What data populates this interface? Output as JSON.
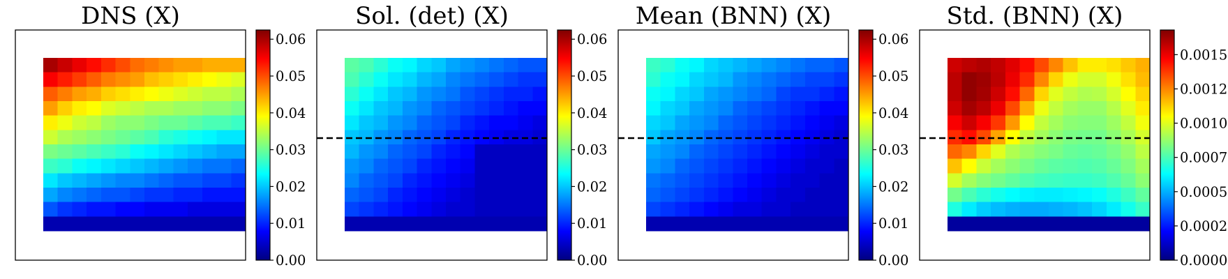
{
  "chart_data": [
    {
      "type": "heatmap",
      "title": "DNS (X)",
      "colormap": "jet",
      "clim": [
        0,
        0.0625
      ],
      "colorbar_ticks": [
        "0.00",
        "0.01",
        "0.02",
        "0.03",
        "0.04",
        "0.05",
        "0.06"
      ],
      "colorbar_tick_values": [
        0,
        0.01,
        0.02,
        0.03,
        0.04,
        0.05,
        0.06
      ],
      "reference_line": null,
      "rows": [
        [
          0.06,
          0.058,
          0.056,
          0.054,
          0.052,
          0.05,
          0.048,
          0.047,
          0.046,
          0.045,
          0.045,
          0.044,
          0.044,
          0.044
        ],
        [
          0.055,
          0.053,
          0.051,
          0.049,
          0.047,
          0.046,
          0.045,
          0.043,
          0.042,
          0.041,
          0.04,
          0.039,
          0.038,
          0.037
        ],
        [
          0.049,
          0.047,
          0.045,
          0.044,
          0.042,
          0.041,
          0.04,
          0.039,
          0.038,
          0.037,
          0.036,
          0.035,
          0.035,
          0.034
        ],
        [
          0.045,
          0.042,
          0.04,
          0.039,
          0.037,
          0.036,
          0.035,
          0.034,
          0.034,
          0.033,
          0.033,
          0.032,
          0.032,
          0.031
        ],
        [
          0.04,
          0.038,
          0.036,
          0.035,
          0.033,
          0.032,
          0.032,
          0.031,
          0.03,
          0.03,
          0.029,
          0.028,
          0.028,
          0.027
        ],
        [
          0.036,
          0.034,
          0.033,
          0.032,
          0.031,
          0.03,
          0.029,
          0.028,
          0.026,
          0.025,
          0.024,
          0.023,
          0.022,
          0.022
        ],
        [
          0.031,
          0.03,
          0.029,
          0.028,
          0.027,
          0.026,
          0.024,
          0.023,
          0.022,
          0.021,
          0.02,
          0.019,
          0.018,
          0.018
        ],
        [
          0.027,
          0.026,
          0.024,
          0.023,
          0.022,
          0.021,
          0.02,
          0.019,
          0.018,
          0.017,
          0.016,
          0.015,
          0.015,
          0.014
        ],
        [
          0.022,
          0.02,
          0.019,
          0.018,
          0.017,
          0.016,
          0.016,
          0.015,
          0.014,
          0.013,
          0.013,
          0.012,
          0.012,
          0.011
        ],
        [
          0.018,
          0.016,
          0.015,
          0.014,
          0.013,
          0.013,
          0.012,
          0.011,
          0.011,
          0.01,
          0.01,
          0.009,
          0.009,
          0.009
        ],
        [
          0.013,
          0.011,
          0.01,
          0.009,
          0.009,
          0.008,
          0.008,
          0.007,
          0.007,
          0.007,
          0.006,
          0.006,
          0.006,
          0.006
        ],
        [
          0.003,
          0.003,
          0.003,
          0.003,
          0.003,
          0.003,
          0.003,
          0.003,
          0.003,
          0.003,
          0.003,
          0.003,
          0.003,
          0.003
        ]
      ]
    },
    {
      "type": "heatmap",
      "title": "Sol. (det) (X)",
      "colormap": "jet",
      "clim": [
        0,
        0.0625
      ],
      "colorbar_ticks": [
        "0.00",
        "0.01",
        "0.02",
        "0.03",
        "0.04",
        "0.05",
        "0.06"
      ],
      "colorbar_tick_values": [
        0,
        0.01,
        0.02,
        0.03,
        0.04,
        0.05,
        0.06
      ],
      "reference_line": "dashed horizontal",
      "rows": [
        [
          0.029,
          0.028,
          0.026,
          0.024,
          0.023,
          0.021,
          0.02,
          0.018,
          0.017,
          0.016,
          0.015,
          0.014,
          0.013,
          0.013
        ],
        [
          0.028,
          0.026,
          0.024,
          0.022,
          0.021,
          0.019,
          0.018,
          0.016,
          0.015,
          0.014,
          0.013,
          0.012,
          0.011,
          0.011
        ],
        [
          0.026,
          0.024,
          0.022,
          0.02,
          0.019,
          0.017,
          0.016,
          0.015,
          0.013,
          0.012,
          0.011,
          0.01,
          0.01,
          0.009
        ],
        [
          0.024,
          0.022,
          0.02,
          0.019,
          0.017,
          0.016,
          0.014,
          0.013,
          0.012,
          0.011,
          0.01,
          0.009,
          0.008,
          0.008
        ],
        [
          0.022,
          0.02,
          0.019,
          0.017,
          0.016,
          0.014,
          0.013,
          0.012,
          0.01,
          0.009,
          0.008,
          0.008,
          0.007,
          0.006
        ],
        [
          0.02,
          0.019,
          0.017,
          0.016,
          0.014,
          0.013,
          0.012,
          0.01,
          0.009,
          0.008,
          0.007,
          0.006,
          0.006,
          0.005
        ],
        [
          0.019,
          0.017,
          0.016,
          0.014,
          0.013,
          0.012,
          0.01,
          0.009,
          0.008,
          0.004,
          0.004,
          0.004,
          0.004,
          0.004
        ],
        [
          0.017,
          0.016,
          0.014,
          0.013,
          0.012,
          0.01,
          0.009,
          0.008,
          0.007,
          0.004,
          0.004,
          0.004,
          0.004,
          0.004
        ],
        [
          0.016,
          0.014,
          0.013,
          0.012,
          0.01,
          0.009,
          0.008,
          0.007,
          0.006,
          0.004,
          0.004,
          0.004,
          0.004,
          0.004
        ],
        [
          0.014,
          0.013,
          0.012,
          0.01,
          0.009,
          0.008,
          0.007,
          0.006,
          0.005,
          0.004,
          0.004,
          0.004,
          0.004,
          0.004
        ],
        [
          0.012,
          0.011,
          0.01,
          0.009,
          0.008,
          0.007,
          0.006,
          0.005,
          0.005,
          0.004,
          0.004,
          0.004,
          0.004,
          0.004
        ],
        [
          0.003,
          0.003,
          0.003,
          0.003,
          0.003,
          0.003,
          0.003,
          0.003,
          0.003,
          0.003,
          0.003,
          0.003,
          0.003,
          0.003
        ]
      ]
    },
    {
      "type": "heatmap",
      "title": "Mean (BNN) (X)",
      "colormap": "jet",
      "clim": [
        0,
        0.0625
      ],
      "colorbar_ticks": [
        "0.00",
        "0.01",
        "0.02",
        "0.03",
        "0.04",
        "0.05",
        "0.06"
      ],
      "colorbar_tick_values": [
        0,
        0.01,
        0.02,
        0.03,
        0.04,
        0.05,
        0.06
      ],
      "reference_line": "dashed horizontal",
      "rows": [
        [
          0.027,
          0.026,
          0.024,
          0.023,
          0.021,
          0.02,
          0.019,
          0.018,
          0.017,
          0.016,
          0.015,
          0.014,
          0.014,
          0.013
        ],
        [
          0.026,
          0.024,
          0.023,
          0.021,
          0.02,
          0.019,
          0.017,
          0.016,
          0.015,
          0.014,
          0.013,
          0.012,
          0.012,
          0.011
        ],
        [
          0.024,
          0.023,
          0.021,
          0.02,
          0.018,
          0.017,
          0.016,
          0.015,
          0.014,
          0.012,
          0.011,
          0.011,
          0.01,
          0.009
        ],
        [
          0.023,
          0.021,
          0.02,
          0.018,
          0.017,
          0.016,
          0.014,
          0.013,
          0.012,
          0.011,
          0.01,
          0.009,
          0.008,
          0.008
        ],
        [
          0.021,
          0.02,
          0.018,
          0.017,
          0.016,
          0.014,
          0.013,
          0.012,
          0.011,
          0.01,
          0.009,
          0.008,
          0.007,
          0.006
        ],
        [
          0.02,
          0.018,
          0.017,
          0.016,
          0.014,
          0.013,
          0.012,
          0.011,
          0.01,
          0.009,
          0.008,
          0.007,
          0.006,
          0.005
        ],
        [
          0.018,
          0.017,
          0.016,
          0.014,
          0.013,
          0.012,
          0.011,
          0.01,
          0.009,
          0.008,
          0.007,
          0.006,
          0.005,
          0.005
        ],
        [
          0.017,
          0.016,
          0.014,
          0.013,
          0.012,
          0.011,
          0.01,
          0.009,
          0.008,
          0.007,
          0.006,
          0.005,
          0.005,
          0.004
        ],
        [
          0.015,
          0.014,
          0.013,
          0.012,
          0.011,
          0.01,
          0.009,
          0.008,
          0.007,
          0.006,
          0.005,
          0.005,
          0.004,
          0.004
        ],
        [
          0.014,
          0.013,
          0.012,
          0.011,
          0.01,
          0.009,
          0.008,
          0.007,
          0.006,
          0.005,
          0.005,
          0.004,
          0.004,
          0.004
        ],
        [
          0.012,
          0.011,
          0.01,
          0.009,
          0.008,
          0.007,
          0.006,
          0.006,
          0.005,
          0.005,
          0.004,
          0.004,
          0.004,
          0.004
        ],
        [
          0.003,
          0.003,
          0.003,
          0.003,
          0.003,
          0.003,
          0.003,
          0.003,
          0.003,
          0.003,
          0.003,
          0.003,
          0.003,
          0.003
        ]
      ]
    },
    {
      "type": "heatmap",
      "title": "Std. (BNN) (X)",
      "colormap": "jet",
      "clim": [
        0,
        0.00168
      ],
      "colorbar_ticks": [
        "0.00000",
        "0.00025",
        "0.00050",
        "0.00075",
        "0.00100",
        "0.00125",
        "0.00150"
      ],
      "colorbar_tick_values": [
        0,
        0.00025,
        0.0005,
        0.00075,
        0.001,
        0.00125,
        0.0015
      ],
      "reference_line": "dashed horizontal",
      "rows": [
        [
          0.00155,
          0.00158,
          0.0016,
          0.00157,
          0.00152,
          0.00145,
          0.00135,
          0.00125,
          0.00115,
          0.00108,
          0.00108,
          0.0011,
          0.00114,
          0.00118
        ],
        [
          0.00158,
          0.00165,
          0.00163,
          0.00158,
          0.0015,
          0.0014,
          0.00125,
          0.00112,
          0.00102,
          0.00098,
          0.00098,
          0.00103,
          0.0011,
          0.00116
        ],
        [
          0.00158,
          0.00165,
          0.00162,
          0.00155,
          0.00145,
          0.0013,
          0.00112,
          0.001,
          0.00095,
          0.00092,
          0.00093,
          0.00098,
          0.00105,
          0.00112
        ],
        [
          0.00155,
          0.00162,
          0.00158,
          0.0015,
          0.00135,
          0.00118,
          0.00102,
          0.00095,
          0.0009,
          0.00088,
          0.00088,
          0.00093,
          0.001,
          0.00108
        ],
        [
          0.00148,
          0.00155,
          0.00148,
          0.00138,
          0.00122,
          0.00105,
          0.00095,
          0.0009,
          0.00086,
          0.00085,
          0.00085,
          0.00089,
          0.00095,
          0.00103
        ],
        [
          0.0014,
          0.00145,
          0.00135,
          0.0012,
          0.00105,
          0.00095,
          0.0009,
          0.00086,
          0.00083,
          0.00082,
          0.00082,
          0.00086,
          0.00091,
          0.00098
        ],
        [
          0.0013,
          0.00125,
          0.00112,
          0.001,
          0.00092,
          0.00088,
          0.00085,
          0.00083,
          0.0008,
          0.00079,
          0.0008,
          0.00083,
          0.00087,
          0.00094
        ],
        [
          0.00115,
          0.00105,
          0.00096,
          0.0009,
          0.00086,
          0.00083,
          0.0008,
          0.00078,
          0.00077,
          0.00076,
          0.00077,
          0.0008,
          0.00084,
          0.0009
        ],
        [
          0.00098,
          0.0009,
          0.00085,
          0.00082,
          0.00079,
          0.00076,
          0.00074,
          0.00073,
          0.00072,
          0.00072,
          0.00073,
          0.00076,
          0.0008,
          0.00086
        ],
        [
          0.00082,
          0.00075,
          0.0007,
          0.00066,
          0.00063,
          0.00061,
          0.0006,
          0.0006,
          0.00061,
          0.00062,
          0.00064,
          0.00068,
          0.00073,
          0.00079
        ],
        [
          0.00068,
          0.0006,
          0.00055,
          0.00052,
          0.0005,
          0.00049,
          0.00049,
          0.0005,
          0.00051,
          0.00053,
          0.00056,
          0.0006,
          0.00066,
          0.00072
        ],
        [
          5e-05,
          5e-05,
          5e-05,
          5e-05,
          5e-05,
          5e-05,
          5e-05,
          5e-05,
          5e-05,
          5e-05,
          5e-05,
          5e-05,
          5e-05,
          5e-05
        ]
      ]
    }
  ]
}
